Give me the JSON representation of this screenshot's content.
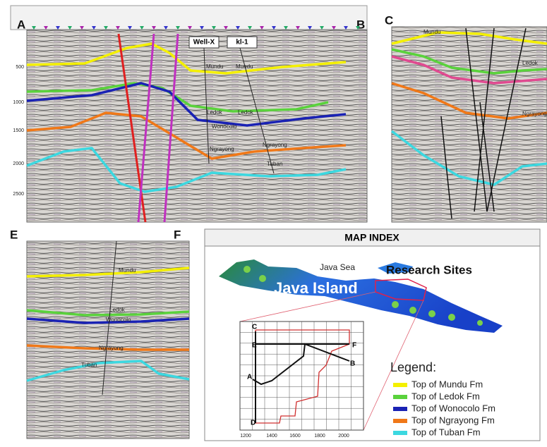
{
  "sections": [
    {
      "start_label": "A",
      "end_label": "B",
      "wells": [
        "Well-X",
        "kl-1"
      ],
      "depth_ticks": [
        "500",
        "1000",
        "1500",
        "2000",
        "2500"
      ],
      "horizon_labels": [
        "Mundu",
        "Mundu",
        "Ledok",
        "Ledok",
        "Wonocolo",
        "Ngrayong",
        "Ngrayong",
        "Tuban"
      ]
    },
    {
      "start_label": "C",
      "horizon_labels": [
        "Mundu",
        "Ledok",
        "Ngrayong"
      ]
    },
    {
      "start_label": "E",
      "end_label": "F",
      "horizon_labels": [
        "Mundu",
        "Ledok",
        "Wonocolo",
        "Ngrayong",
        "Tuban"
      ]
    }
  ],
  "map_index": {
    "title": "MAP INDEX",
    "sea_label": "Java Sea",
    "island_label": "Java Island",
    "sites_label": "Research Sites",
    "grid_x_ticks": [
      "1200",
      "1400",
      "1600",
      "1800",
      "2000"
    ],
    "grid_labels": [
      "C",
      "E",
      "A",
      "D",
      "F",
      "B"
    ],
    "legend": {
      "title": "Legend:",
      "items": [
        {
          "label": "Top of Mundu Fm",
          "color": "#f4f000"
        },
        {
          "label": "Top of Ledok Fm",
          "color": "#5ad23c"
        },
        {
          "label": "Top of Wonocolo Fm",
          "color": "#1a22b4"
        },
        {
          "label": "Top of Ngrayong Fm",
          "color": "#f07818"
        },
        {
          "label": "Top of Tuban Fm",
          "color": "#3cd8e0"
        }
      ]
    }
  }
}
